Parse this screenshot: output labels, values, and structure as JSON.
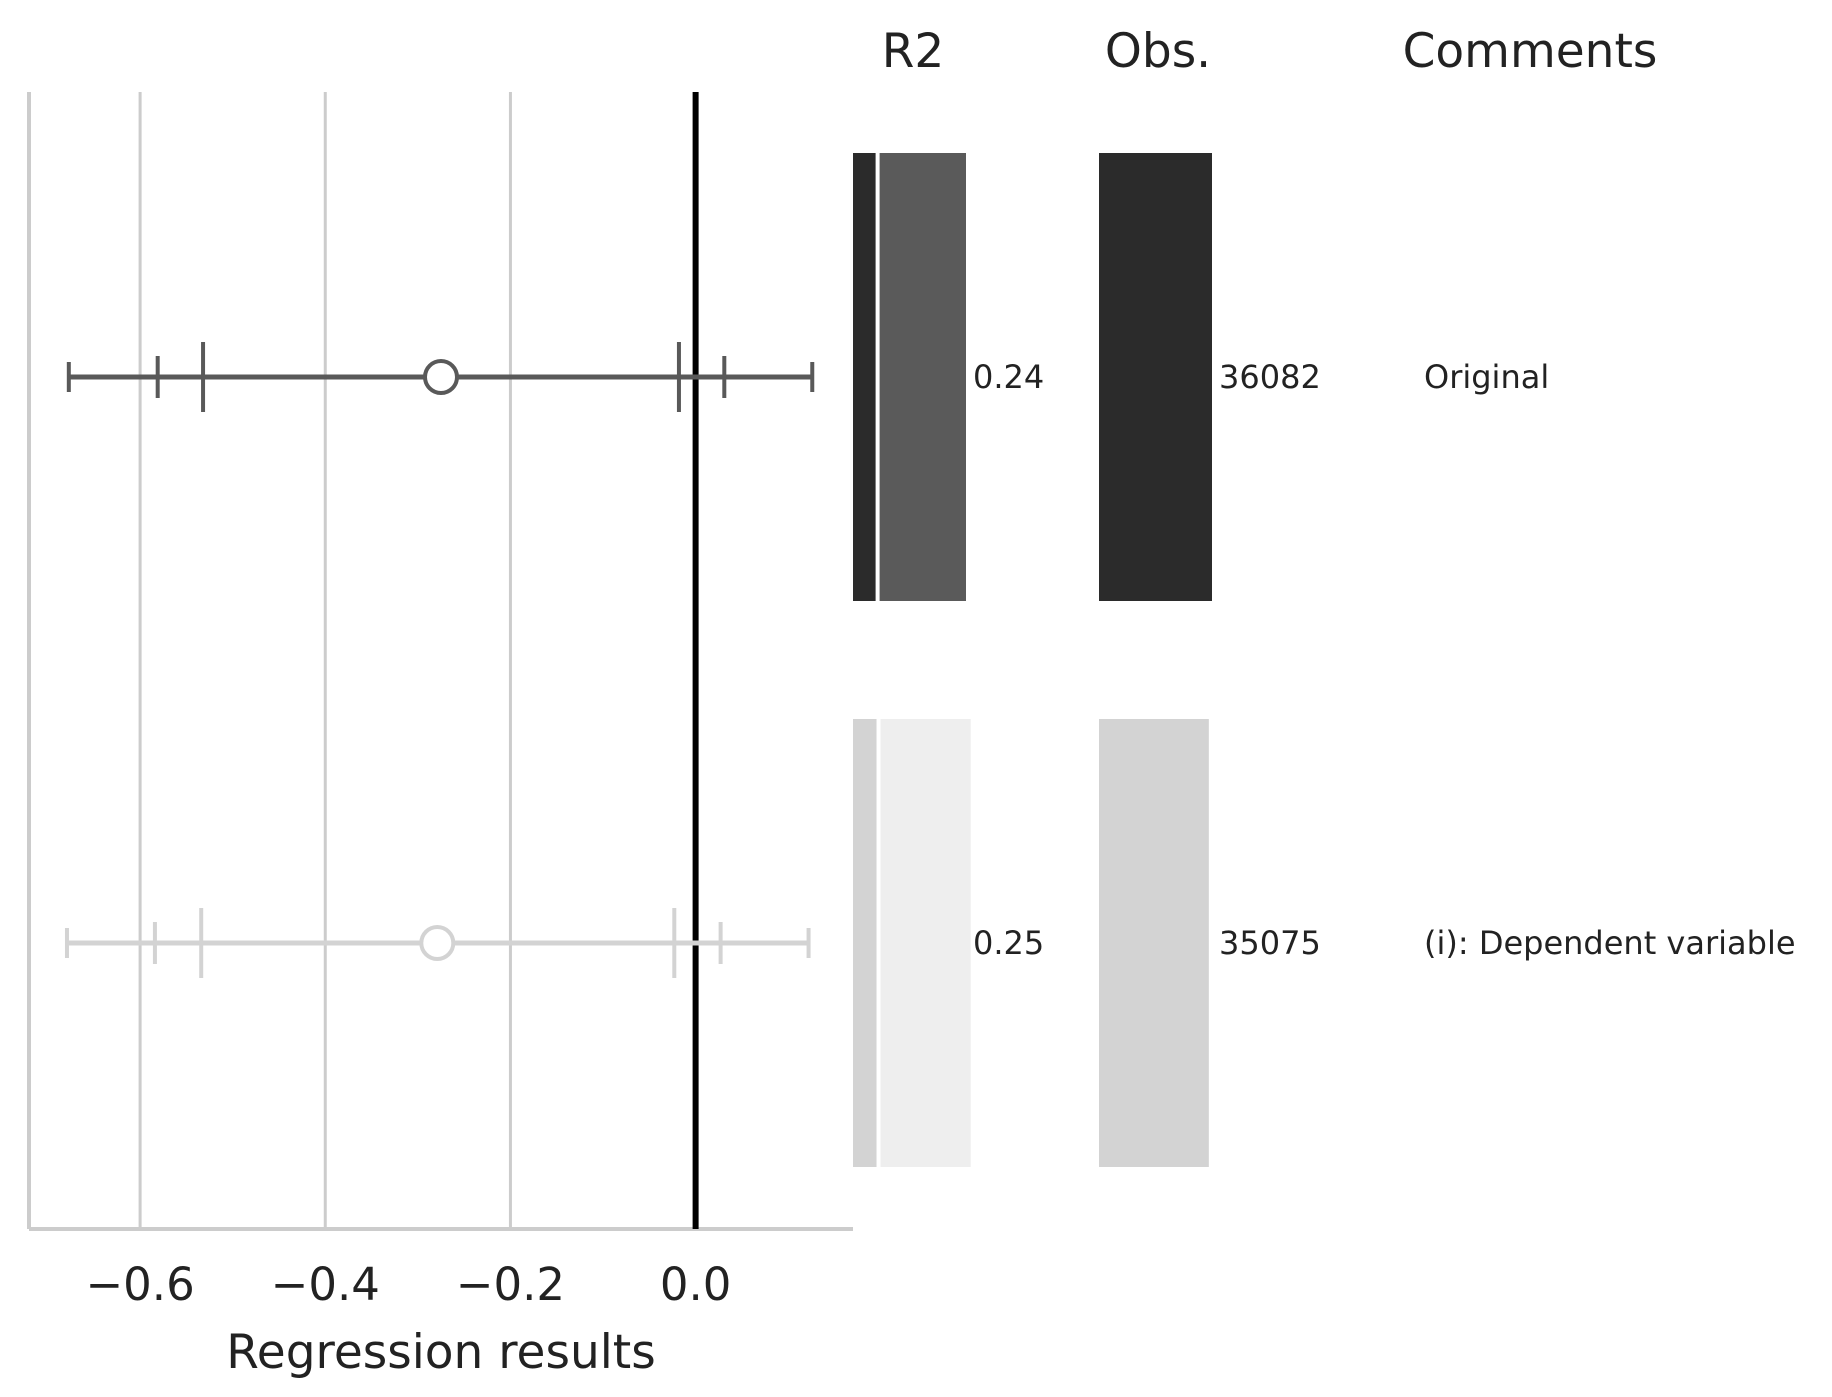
{
  "chart_data": {
    "type": "scatter",
    "xlabel": "Regression results",
    "xlim": [
      -0.72,
      0.17
    ],
    "xticks": [
      {
        "value": -0.6,
        "label": "−0.6"
      },
      {
        "value": -0.4,
        "label": "−0.4"
      },
      {
        "value": -0.2,
        "label": "−0.2"
      },
      {
        "value": 0.0,
        "label": "0.0"
      }
    ],
    "grid": true,
    "reference_line": 0.0,
    "columns": {
      "r2": "R2",
      "obs": "Obs.",
      "comments": "Comments"
    },
    "obs_max": 36082,
    "rows": [
      {
        "estimate": -0.275,
        "ci_90": [
          -0.532,
          -0.018
        ],
        "ci_95": [
          -0.581,
          0.031
        ],
        "ci_99": [
          -0.677,
          0.126
        ],
        "r2": 0.24,
        "r2_label": "0.24",
        "r2_within": 0.2,
        "obs": 36082,
        "obs_label": "36082",
        "comment": "Original",
        "color": "#595959",
        "bar_dark": "#2b2b2b",
        "bar_light": "#5a5a5a",
        "obs_color": "#2b2b2b"
      },
      {
        "estimate": -0.279,
        "ci_90": [
          -0.534,
          -0.023
        ],
        "ci_95": [
          -0.584,
          0.027
        ],
        "ci_99": [
          -0.679,
          0.122
        ],
        "r2": 0.25,
        "r2_label": "0.25",
        "r2_within": 0.2,
        "obs": 35075,
        "obs_label": "35075",
        "comment": "(i): Dependent variable",
        "color": "#d3d3d3",
        "bar_dark": "#d3d3d3",
        "bar_light": "#eeeeee",
        "obs_color": "#d3d3d3"
      }
    ]
  }
}
